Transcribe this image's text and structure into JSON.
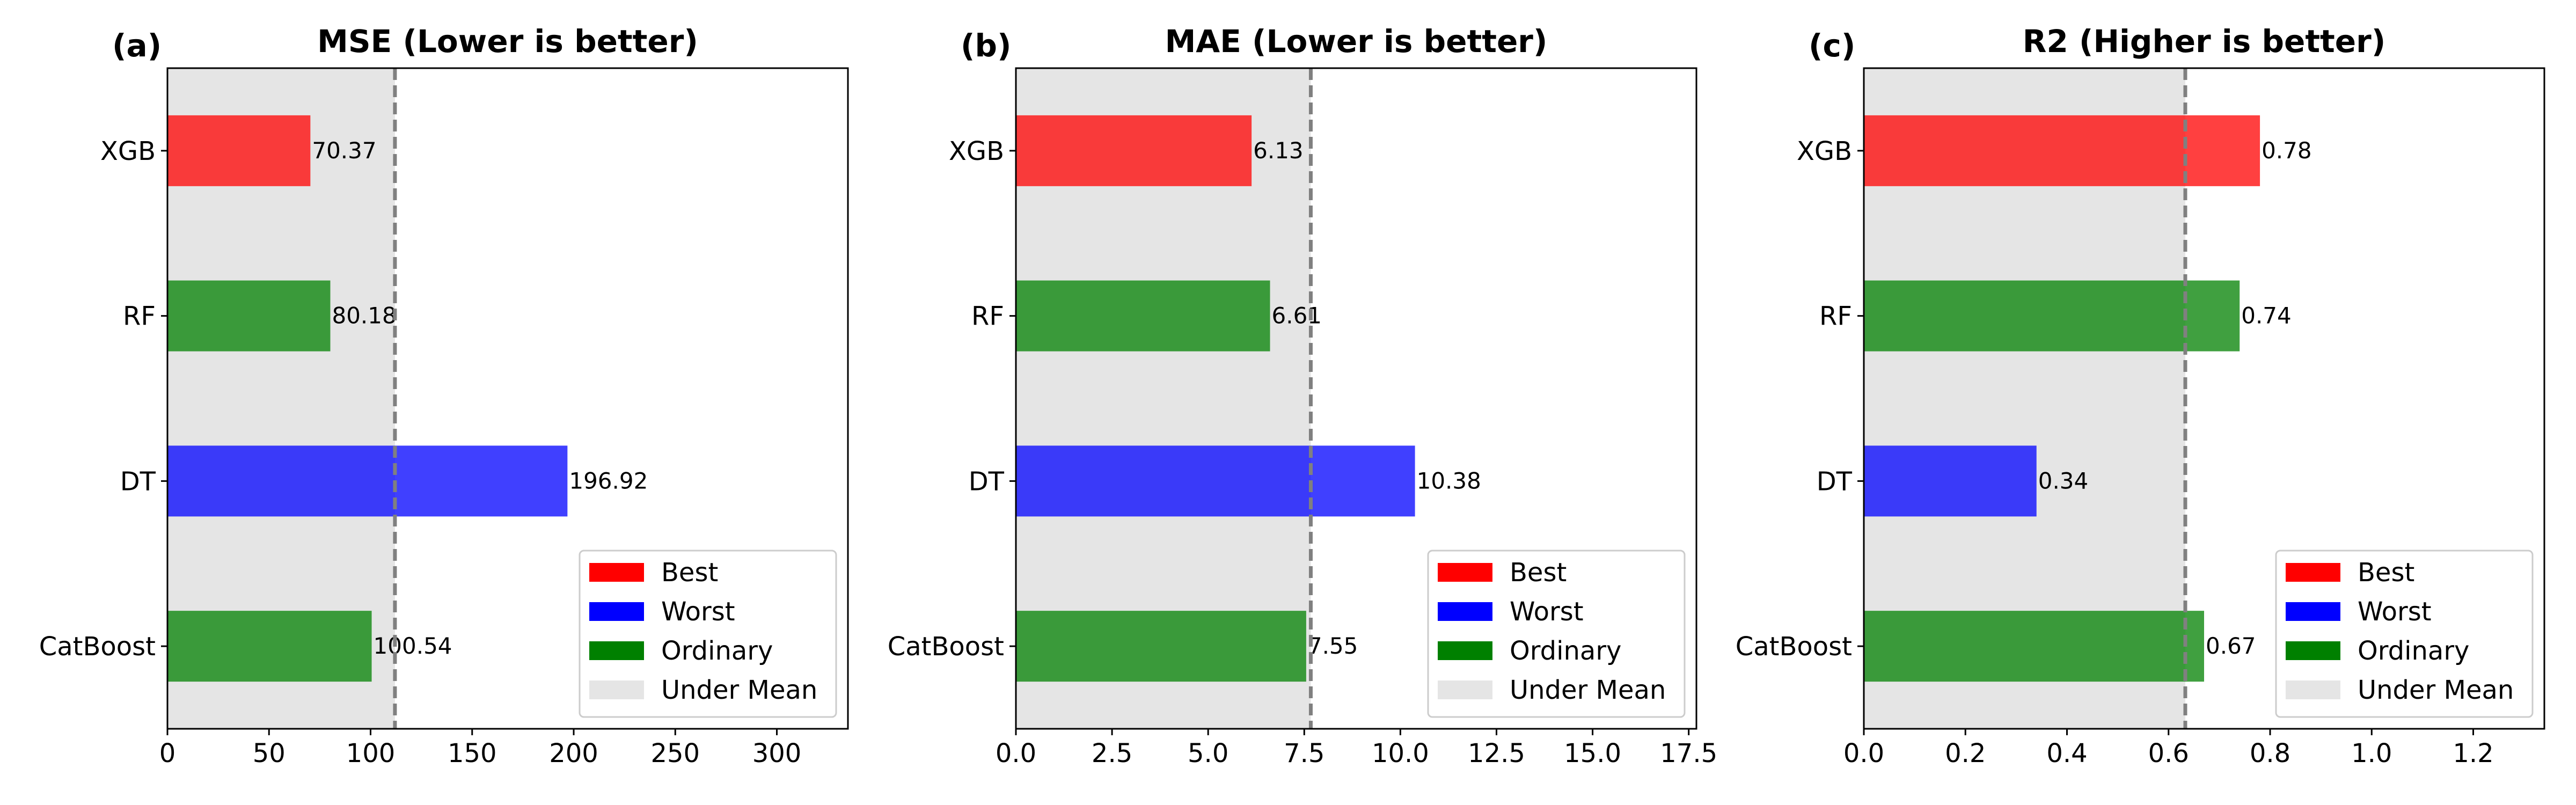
{
  "colors": {
    "best": "#ff0000",
    "worst": "#0000ff",
    "ordinary": "#008000",
    "under_mean": "#e5e5e5",
    "mean_line": "#808080"
  },
  "chart_data": [
    {
      "type": "bar",
      "orientation": "horizontal",
      "panel_label": "(a)",
      "title": "MSE (Lower is better)",
      "categories": [
        "XGB",
        "RF",
        "DT",
        "CatBoost"
      ],
      "values": [
        70.37,
        80.18,
        196.92,
        100.54
      ],
      "value_labels": [
        "70.37",
        "80.18",
        "196.92",
        "100.54"
      ],
      "roles": [
        "best",
        "ordinary",
        "worst",
        "ordinary"
      ],
      "mean": 112.0,
      "xlim": [
        0,
        335
      ],
      "xticks": [
        0,
        50,
        100,
        150,
        200,
        250,
        300
      ],
      "xtick_labels": [
        "0",
        "50",
        "100",
        "150",
        "200",
        "250",
        "300"
      ],
      "legend": {
        "placement": "lower-right",
        "entries": [
          {
            "label": "Best",
            "role": "best"
          },
          {
            "label": "Worst",
            "role": "worst"
          },
          {
            "label": "Ordinary",
            "role": "ordinary"
          },
          {
            "label": "Under Mean",
            "role": "under_mean"
          }
        ]
      }
    },
    {
      "type": "bar",
      "orientation": "horizontal",
      "panel_label": "(b)",
      "title": "MAE (Lower is better)",
      "categories": [
        "XGB",
        "RF",
        "DT",
        "CatBoost"
      ],
      "values": [
        6.13,
        6.61,
        10.38,
        7.55
      ],
      "value_labels": [
        "6.13",
        "6.61",
        "10.38",
        "7.55"
      ],
      "roles": [
        "best",
        "ordinary",
        "worst",
        "ordinary"
      ],
      "mean": 7.67,
      "xlim": [
        0,
        17.7
      ],
      "xticks": [
        0,
        2.5,
        5,
        7.5,
        10,
        12.5,
        15,
        17.5
      ],
      "xtick_labels": [
        "0.0",
        "2.5",
        "5.0",
        "7.5",
        "10.0",
        "12.5",
        "15.0",
        "17.5"
      ],
      "legend": {
        "placement": "lower-right",
        "entries": [
          {
            "label": "Best",
            "role": "best"
          },
          {
            "label": "Worst",
            "role": "worst"
          },
          {
            "label": "Ordinary",
            "role": "ordinary"
          },
          {
            "label": "Under Mean",
            "role": "under_mean"
          }
        ]
      }
    },
    {
      "type": "bar",
      "orientation": "horizontal",
      "panel_label": "(c)",
      "title": "R2 (Higher is better)",
      "categories": [
        "XGB",
        "RF",
        "DT",
        "CatBoost"
      ],
      "values": [
        0.78,
        0.74,
        0.34,
        0.67
      ],
      "value_labels": [
        "0.78",
        "0.74",
        "0.34",
        "0.67"
      ],
      "roles": [
        "best",
        "ordinary",
        "worst",
        "ordinary"
      ],
      "mean": 0.633,
      "xlim": [
        0,
        1.34
      ],
      "xticks": [
        0,
        0.2,
        0.4,
        0.6,
        0.8,
        1.0,
        1.2
      ],
      "xtick_labels": [
        "0.0",
        "0.2",
        "0.4",
        "0.6",
        "0.8",
        "1.0",
        "1.2"
      ],
      "legend": {
        "placement": "lower-right",
        "entries": [
          {
            "label": "Best",
            "role": "best"
          },
          {
            "label": "Worst",
            "role": "worst"
          },
          {
            "label": "Ordinary",
            "role": "ordinary"
          },
          {
            "label": "Under Mean",
            "role": "under_mean"
          }
        ]
      }
    }
  ]
}
